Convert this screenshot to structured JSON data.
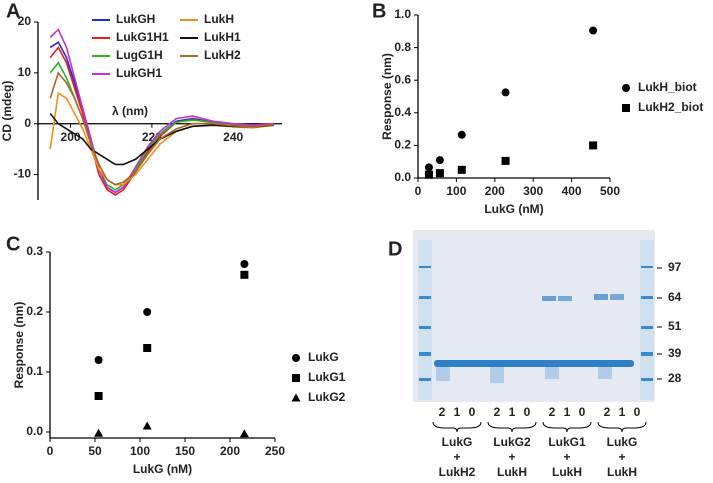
{
  "chart_data": [
    {
      "type": "line",
      "panel_label": "A",
      "xlabel": "λ (nm)",
      "ylabel": "CD (mdeg)",
      "x": [
        195,
        197,
        199,
        201,
        203,
        205,
        207,
        209,
        211,
        213,
        216,
        219,
        222,
        226,
        230,
        235,
        240,
        245,
        250
      ],
      "xlim": [
        192,
        252
      ],
      "xticks": [
        200,
        220,
        240
      ],
      "ylim": [
        -15,
        20
      ],
      "yticks": [
        -10,
        0,
        10,
        20
      ],
      "series": [
        {
          "name": "LukGH",
          "color": "#1f2fcf",
          "values": [
            15,
            16,
            13,
            8,
            3,
            -3,
            -9,
            -12.5,
            -13.5,
            -12.5,
            -9,
            -5,
            -2,
            0.5,
            1,
            0.3,
            -0.2,
            -0.3,
            0
          ]
        },
        {
          "name": "LukG1H1",
          "color": "#e0201c",
          "values": [
            13,
            15,
            12,
            7,
            2,
            -4,
            -10,
            -13,
            -14,
            -13,
            -9.5,
            -5.5,
            -2.5,
            0.3,
            0.8,
            0.2,
            -0.2,
            -0.4,
            0
          ]
        },
        {
          "name": "LugG1H",
          "color": "#2ab52a",
          "values": [
            10,
            12,
            9,
            5,
            1,
            -4,
            -9,
            -12,
            -13,
            -12,
            -9,
            -5,
            -2,
            0.3,
            0.7,
            0.3,
            -0.2,
            -0.3,
            0
          ]
        },
        {
          "name": "LukGH1",
          "color": "#c032d0",
          "values": [
            17,
            18.5,
            15,
            9,
            3,
            -3,
            -9,
            -12.5,
            -13.5,
            -12.5,
            -8.5,
            -4.5,
            -1.5,
            1,
            1.5,
            0.5,
            0,
            -0.3,
            0
          ]
        },
        {
          "name": "LukH",
          "color": "#f0901c",
          "values": [
            -5,
            6,
            5,
            2,
            -1,
            -5,
            -9,
            -11,
            -12,
            -12,
            -10,
            -7,
            -4,
            -1.5,
            -0.5,
            -0.3,
            -0.6,
            -0.8,
            -0.3
          ]
        },
        {
          "name": "LukH1",
          "color": "#111111",
          "values": [
            2,
            0,
            -1,
            -2,
            -3,
            -5,
            -6,
            -7,
            -8,
            -8,
            -7,
            -5,
            -3,
            -1.5,
            -0.5,
            -0.3,
            -0.5,
            -0.6,
            -0.3
          ]
        },
        {
          "name": "LukH2",
          "color": "#a8682a",
          "values": [
            5,
            10,
            8,
            5,
            1,
            -4,
            -8,
            -11,
            -12,
            -11.5,
            -9.5,
            -6,
            -3,
            -1,
            0,
            0,
            -0.4,
            -0.6,
            -0.2
          ]
        }
      ]
    },
    {
      "type": "scatter",
      "panel_label": "B",
      "xlabel": "LukG (nM)",
      "ylabel": "Response (nm)",
      "x": [
        28.5,
        57,
        114,
        228,
        456
      ],
      "xlim": [
        0,
        500
      ],
      "xticks": [
        0,
        100,
        200,
        300,
        400,
        500
      ],
      "ylim": [
        0,
        1
      ],
      "yticks": [
        {
          "value": 0,
          "label": "0.0"
        },
        0.2,
        0.4,
        0.6,
        0.8,
        {
          "value": 1,
          "label": "1.0"
        }
      ],
      "series": [
        {
          "name": "LukH_biot",
          "color": "#000000",
          "marker": "circle",
          "values": [
            0.065,
            0.11,
            0.265,
            0.525,
            0.905
          ]
        },
        {
          "name": "LukH2_biot",
          "color": "#000000",
          "marker": "square",
          "values": [
            0.02,
            0.03,
            0.05,
            0.105,
            0.2
          ]
        }
      ]
    },
    {
      "type": "scatter",
      "panel_label": "C",
      "xlabel": "LukG (nM)",
      "ylabel": "Response (nm)",
      "x": [
        54,
        108,
        216
      ],
      "xlim": [
        0,
        250
      ],
      "xticks": [
        0,
        50,
        100,
        150,
        200,
        250
      ],
      "ylim": [
        -0.01,
        0.3
      ],
      "yticks": [
        {
          "value": 0,
          "label": "0.0"
        },
        0.1,
        0.2,
        0.3
      ],
      "series": [
        {
          "name": "LukG",
          "color": "#000000",
          "marker": "circle",
          "values": [
            0.12,
            0.2,
            0.28
          ]
        },
        {
          "name": "LukG1",
          "color": "#000000",
          "marker": "square",
          "values": [
            0.06,
            0.14,
            0.262
          ]
        },
        {
          "name": "LukG2",
          "color": "#000000",
          "marker": "triangle",
          "values": [
            -0.002,
            0.01,
            -0.003
          ]
        }
      ]
    }
  ],
  "gel": {
    "panel_label": "D",
    "markers": [
      97,
      64,
      51,
      39,
      28
    ],
    "groups": [
      {
        "lanes": [
          2,
          1,
          0
        ],
        "label": [
          "LukG",
          "+",
          "LukH2"
        ]
      },
      {
        "lanes": [
          2,
          1,
          0
        ],
        "label": [
          "LukG2",
          "+",
          "LukH"
        ]
      },
      {
        "lanes": [
          2,
          1,
          0
        ],
        "label": [
          "LukG1",
          "+",
          "LukH"
        ]
      },
      {
        "lanes": [
          2,
          1,
          0
        ],
        "label": [
          "LukG",
          "+",
          "LukH"
        ]
      }
    ]
  }
}
